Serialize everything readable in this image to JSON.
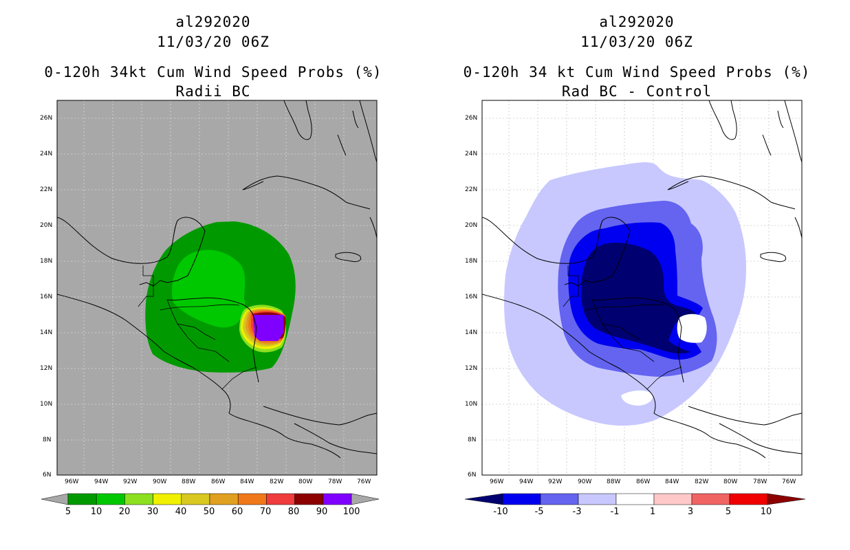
{
  "left_panel": {
    "storm_id": "al292020",
    "datetime": "11/03/20 06Z",
    "title": "0-120h 34kt Cum Wind Speed Probs (%)",
    "subtitle": "Radii BC",
    "lat_labels": [
      "26N",
      "24N",
      "22N",
      "20N",
      "18N",
      "16N",
      "14N",
      "12N",
      "10N",
      "8N",
      "6N"
    ],
    "lon_labels": [
      "96W",
      "94W",
      "92W",
      "90W",
      "88W",
      "86W",
      "84W",
      "82W",
      "80W",
      "78W",
      "76W"
    ],
    "colorbar": {
      "labels": [
        "5",
        "10",
        "20",
        "30",
        "40",
        "50",
        "60",
        "70",
        "80",
        "90",
        "100"
      ],
      "colors": [
        "#009a00",
        "#00c800",
        "#8ce020",
        "#f0f000",
        "#d8c820",
        "#e0a020",
        "#f07818",
        "#f03c3c",
        "#8c0000",
        "#8000ff"
      ]
    }
  },
  "right_panel": {
    "storm_id": "al292020",
    "datetime": "11/03/20 06Z",
    "title": "0-120h 34 kt Cum Wind Speed Probs (%)",
    "subtitle": "Rad BC - Control",
    "lat_labels": [
      "26N",
      "24N",
      "22N",
      "20N",
      "18N",
      "16N",
      "14N",
      "12N",
      "10N",
      "8N",
      "6N"
    ],
    "lon_labels": [
      "96W",
      "94W",
      "92W",
      "90W",
      "88W",
      "86W",
      "84W",
      "82W",
      "80W",
      "78W",
      "76W"
    ],
    "colorbar": {
      "labels": [
        "-10",
        "-5",
        "-3",
        "-1",
        "1",
        "3",
        "5",
        "10"
      ],
      "colors": [
        "#000070",
        "#0000f0",
        "#6464f0",
        "#c8c8ff",
        "#ffffff",
        "#ffc8c8",
        "#f06464",
        "#f00000",
        "#8c0000"
      ]
    }
  }
}
